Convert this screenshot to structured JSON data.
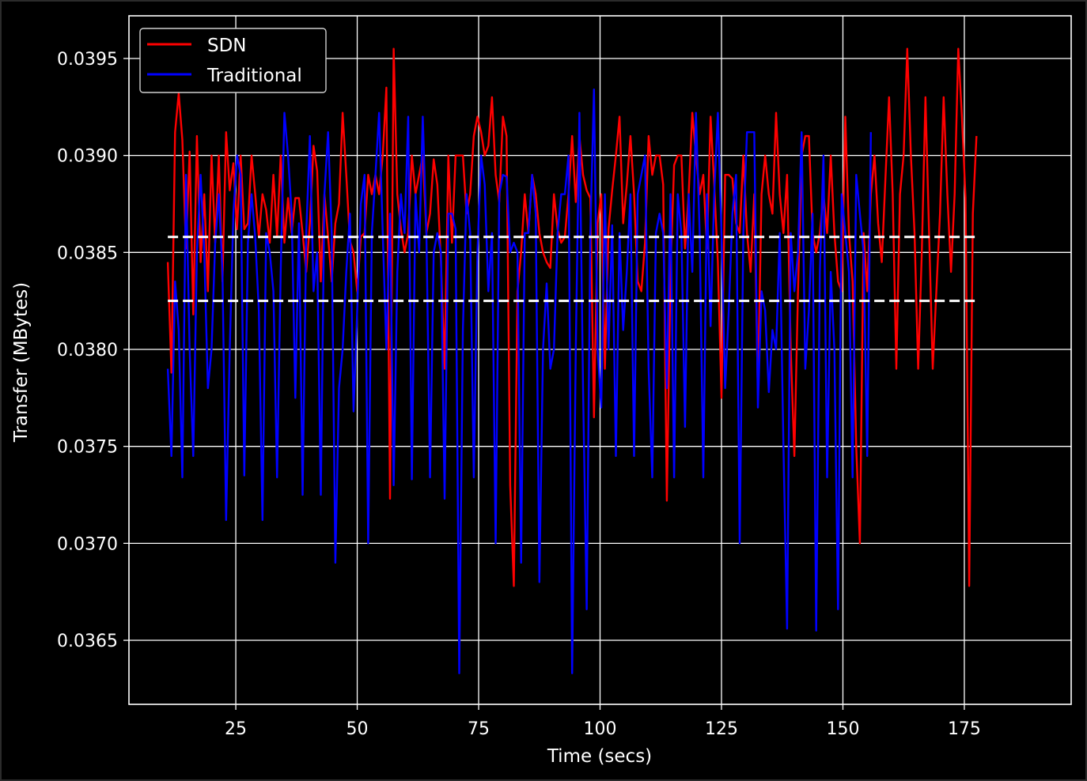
{
  "chart_data": {
    "type": "line",
    "title": "",
    "xlabel": "Time (secs)",
    "ylabel": "Transfer (MBytes)",
    "xlim": [
      3,
      197
    ],
    "ylim": [
      0.03617,
      0.03972
    ],
    "xticks": [
      25,
      50,
      75,
      100,
      125,
      150,
      175
    ],
    "yticks": [
      0.0365,
      0.037,
      0.0375,
      0.038,
      0.0385,
      0.039,
      0.0395
    ],
    "ytick_labels": [
      "0.0365",
      "0.0370",
      "0.0375",
      "0.0380",
      "0.0385",
      "0.0390",
      "0.0395"
    ],
    "grid": true,
    "legend_position": "top-left",
    "colors": {
      "background": "#000000",
      "grid": "#ffffff",
      "text": "#ffffff"
    },
    "series": [
      {
        "name": "SDN",
        "color": "#ff0000",
        "x_start": 11,
        "x_step": 0.75,
        "values": [
          0.03845,
          0.03788,
          0.03912,
          0.03932,
          0.03908,
          0.03852,
          0.03902,
          0.03818,
          0.0391,
          0.03845,
          0.0388,
          0.0383,
          0.039,
          0.03855,
          0.039,
          0.03835,
          0.03912,
          0.03882,
          0.03896,
          0.03862,
          0.039,
          0.03862,
          0.03865,
          0.039,
          0.0388,
          0.03858,
          0.0388,
          0.03872,
          0.03855,
          0.0389,
          0.03858,
          0.039,
          0.03855,
          0.03878,
          0.0386,
          0.03878,
          0.03878,
          0.0386,
          0.0384,
          0.03865,
          0.03905,
          0.03892,
          0.03835,
          0.0388,
          0.03858,
          0.03835,
          0.03865,
          0.03875,
          0.03922,
          0.0389,
          0.03856,
          0.0385,
          0.0383,
          0.03858,
          0.0386,
          0.0389,
          0.0388,
          0.0389,
          0.0388,
          0.039,
          0.03935,
          0.03723,
          0.03955,
          0.0388,
          0.03862,
          0.0385,
          0.0386,
          0.039,
          0.0388,
          0.0389,
          0.039,
          0.0386,
          0.0387,
          0.03898,
          0.03885,
          0.03845,
          0.0379,
          0.039,
          0.03855,
          0.039,
          0.039,
          0.039,
          0.0387,
          0.0388,
          0.0391,
          0.0392,
          0.03912,
          0.039,
          0.03905,
          0.0393,
          0.0389,
          0.03876,
          0.0392,
          0.0391,
          0.0373,
          0.03678,
          0.0383,
          0.0385,
          0.0388,
          0.0386,
          0.0389,
          0.0388,
          0.0386,
          0.0385,
          0.03845,
          0.03842,
          0.0388,
          0.03862,
          0.03855,
          0.03858,
          0.0388,
          0.0391,
          0.03876,
          0.0391,
          0.0389,
          0.03882,
          0.03878,
          0.03765,
          0.03865,
          0.0388,
          0.0379,
          0.03862,
          0.03882,
          0.039,
          0.0392,
          0.03865,
          0.03885,
          0.0391,
          0.0388,
          0.03835,
          0.0383,
          0.03855,
          0.0391,
          0.0389,
          0.039,
          0.039,
          0.03885,
          0.03722,
          0.0384,
          0.03895,
          0.039,
          0.039,
          0.03852,
          0.0388,
          0.03922,
          0.039,
          0.0388,
          0.0389,
          0.03852,
          0.0392,
          0.03885,
          0.03845,
          0.03775,
          0.0389,
          0.0389,
          0.03888,
          0.03865,
          0.0386,
          0.039,
          0.0386,
          0.0384,
          0.0388,
          0.03778,
          0.0388,
          0.039,
          0.0388,
          0.0387,
          0.03922,
          0.0388,
          0.0386,
          0.0389,
          0.038,
          0.03745,
          0.0383,
          0.039,
          0.0391,
          0.0391,
          0.0386,
          0.0385,
          0.0386,
          0.0388,
          0.0386,
          0.039,
          0.0386,
          0.03835,
          0.0383,
          0.0392,
          0.0386,
          0.03835,
          0.0375,
          0.037,
          0.0386,
          0.0383,
          0.0388,
          0.039,
          0.03865,
          0.03845,
          0.03888,
          0.0393,
          0.0388,
          0.0379,
          0.0388,
          0.039,
          0.03955,
          0.039,
          0.0386,
          0.0379,
          0.0385,
          0.0393,
          0.0386,
          0.0379,
          0.0383,
          0.0387,
          0.0393,
          0.0388,
          0.0384,
          0.0388,
          0.03955,
          0.0392,
          0.03878,
          0.03678,
          0.0387,
          0.0391
        ]
      },
      {
        "name": "Traditional",
        "color": "#0000ff",
        "x_start": 11,
        "x_step": 0.75,
        "values": [
          0.0379,
          0.03745,
          0.03835,
          0.0381,
          0.03734,
          0.0389,
          0.038,
          0.03745,
          0.0385,
          0.0389,
          0.0385,
          0.0378,
          0.038,
          0.03855,
          0.0388,
          0.0384,
          0.03712,
          0.038,
          0.0387,
          0.039,
          0.0389,
          0.03735,
          0.03855,
          0.0388,
          0.03858,
          0.0382,
          0.03712,
          0.0386,
          0.0385,
          0.0383,
          0.03734,
          0.0384,
          0.03922,
          0.039,
          0.0387,
          0.03775,
          0.03865,
          0.03725,
          0.0386,
          0.0391,
          0.0383,
          0.0385,
          0.03725,
          0.0388,
          0.03912,
          0.0386,
          0.0369,
          0.0378,
          0.038,
          0.0384,
          0.0387,
          0.03768,
          0.0382,
          0.03875,
          0.0389,
          0.037,
          0.0386,
          0.0389,
          0.03922,
          0.0386,
          0.038,
          0.0387,
          0.0373,
          0.0384,
          0.0388,
          0.0386,
          0.0392,
          0.03733,
          0.0388,
          0.0385,
          0.0392,
          0.0386,
          0.03734,
          0.0385,
          0.0386,
          0.0385,
          0.03723,
          0.0387,
          0.0387,
          0.03862,
          0.03633,
          0.0381,
          0.0388,
          0.0386,
          0.03734,
          0.0385,
          0.039,
          0.03885,
          0.0383,
          0.0386,
          0.037,
          0.0388,
          0.0389,
          0.03889,
          0.0385,
          0.03855,
          0.0385,
          0.0369,
          0.0386,
          0.0386,
          0.0389,
          0.0387,
          0.0368,
          0.038,
          0.03834,
          0.0379,
          0.038,
          0.0386,
          0.0388,
          0.0388,
          0.039,
          0.03633,
          0.038,
          0.03922,
          0.0378,
          0.03666,
          0.0386,
          0.03934,
          0.038,
          0.0377,
          0.0388,
          0.038,
          0.03864,
          0.03745,
          0.0386,
          0.0381,
          0.0384,
          0.0388,
          0.03745,
          0.0388,
          0.0389,
          0.039,
          0.0379,
          0.03734,
          0.0386,
          0.0387,
          0.0386,
          0.0378,
          0.0388,
          0.03734,
          0.0388,
          0.0386,
          0.0376,
          0.0388,
          0.0384,
          0.03922,
          0.0386,
          0.03734,
          0.0388,
          0.03812,
          0.0388,
          0.03922,
          0.0386,
          0.0378,
          0.0382,
          0.0387,
          0.0389,
          0.037,
          0.0386,
          0.03912,
          0.03912,
          0.03912,
          0.0377,
          0.0383,
          0.0382,
          0.03778,
          0.0381,
          0.038,
          0.0386,
          0.0375,
          0.03656,
          0.0386,
          0.0383,
          0.0385,
          0.03912,
          0.0379,
          0.0382,
          0.0387,
          0.03655,
          0.0384,
          0.039,
          0.03734,
          0.0384,
          0.038,
          0.03666,
          0.0388,
          0.0386,
          0.0384,
          0.03734,
          0.0389,
          0.0387,
          0.0385,
          0.03745,
          0.03912
        ]
      }
    ],
    "hlines": [
      {
        "label": "",
        "value": 0.03858,
        "color": "#ffffff",
        "style": "dashed"
      },
      {
        "label": "",
        "value": 0.03825,
        "color": "#ffffff",
        "style": "dashed"
      }
    ]
  }
}
